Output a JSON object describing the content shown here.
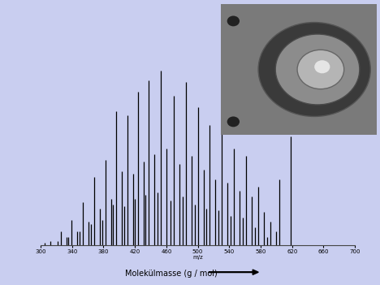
{
  "chart_data": {
    "type": "stem",
    "x_label": "m/z",
    "caption": "Molekülmasse (g / mol)",
    "x": [
      305,
      312,
      321.8,
      325.8,
      332.8,
      335.3,
      339.3,
      346.3,
      349.7,
      353.7,
      360.7,
      364.2,
      368.2,
      375.2,
      378.7,
      382.7,
      389.7,
      392.1,
      396.1,
      403.1,
      406.6,
      410.6,
      417.6,
      420.0,
      424.0,
      431.0,
      433.5,
      437.5,
      444.5,
      449.0,
      453.0,
      460.0,
      465.5,
      469.5,
      476.5,
      481.0,
      485.0,
      492.0,
      496.5,
      500.5,
      507.5,
      511.0,
      515.0,
      522.0,
      526.5,
      530.5,
      537.5,
      542.0,
      546.0,
      553.0,
      557.5,
      561.5,
      568.5,
      573.0,
      577.0,
      584.0,
      588.5,
      592.5,
      599.5,
      604,
      618
    ],
    "values": [
      1,
      2,
      2,
      7,
      4,
      4,
      13,
      7,
      7,
      22,
      12,
      11,
      35,
      19,
      13,
      44,
      24,
      21,
      69,
      38,
      20,
      67,
      37,
      24,
      79,
      43,
      26,
      85,
      47,
      27,
      90,
      50,
      23,
      77,
      42,
      25,
      84,
      46,
      21,
      71,
      39,
      19,
      62,
      34,
      18,
      59,
      32,
      15,
      50,
      28,
      14,
      46,
      25,
      9,
      30,
      17,
      4,
      12,
      7,
      34,
      56
    ],
    "color": "#000000",
    "xlim": [
      300,
      700
    ],
    "xticks": [
      300,
      340,
      380,
      420,
      460,
      500,
      540,
      580,
      620,
      660,
      700
    ],
    "ylim": [
      0,
      100
    ],
    "tick_labels": "x",
    "grid": false
  }
}
